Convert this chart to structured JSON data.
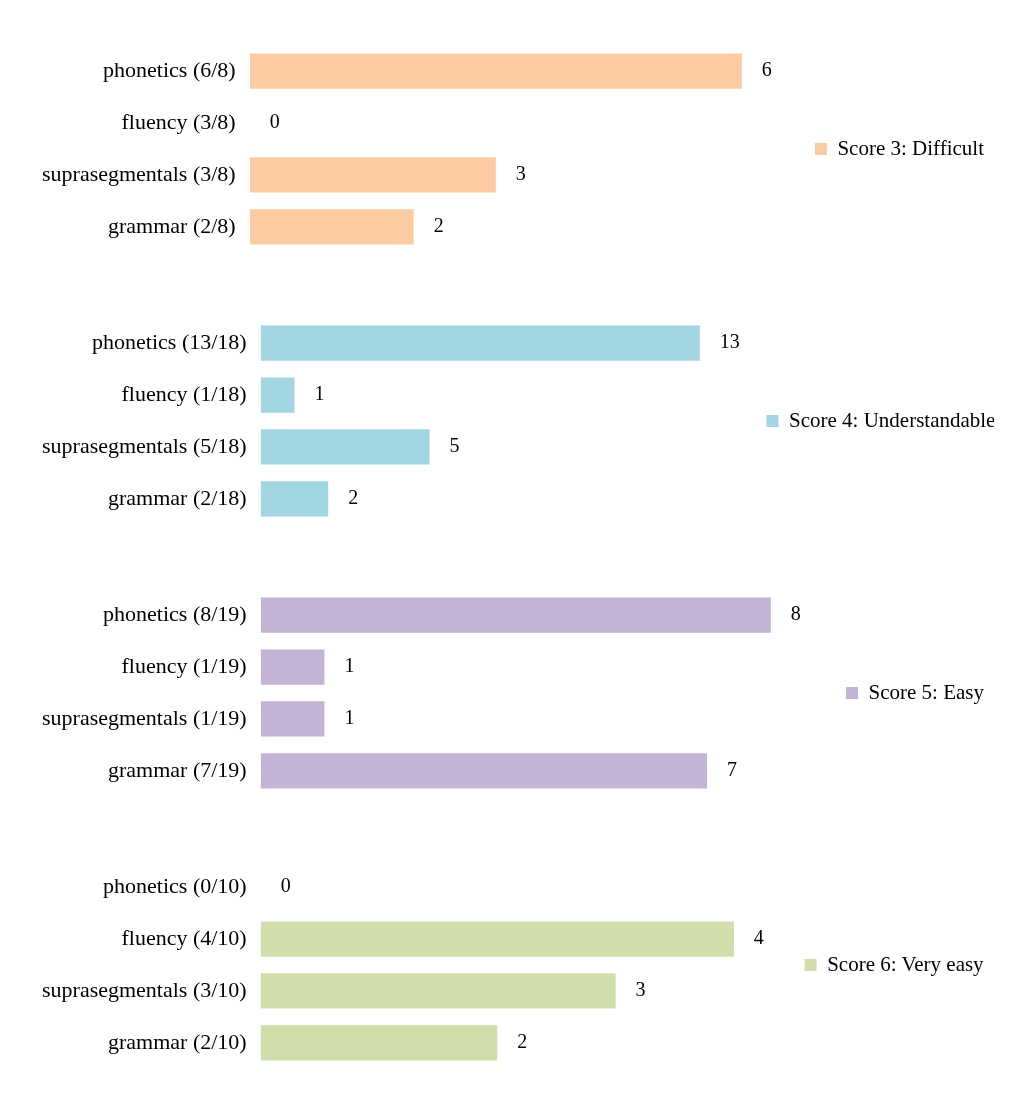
{
  "chart_data": [
    {
      "type": "bar",
      "orientation": "horizontal",
      "categories": [
        "phonetics (6/8)",
        "fluency (3/8)",
        "suprasegmentals (3/8)",
        "grammar (2/8)"
      ],
      "series": [
        {
          "name": "Score 3: Difficult",
          "color": "#fbcca1",
          "values": [
            6,
            0,
            3,
            2
          ]
        }
      ],
      "data_labels": true,
      "legend": "right",
      "tick_labels": "y",
      "grid": false
    },
    {
      "type": "bar",
      "orientation": "horizontal",
      "categories": [
        "phonetics (13/18)",
        "fluency (1/18)",
        "suprasegmentals (5/18)",
        "grammar (2/18)"
      ],
      "series": [
        {
          "name": "Score 4: Understandable",
          "color": "#a2d6e3",
          "values": [
            13,
            1,
            5,
            2
          ]
        }
      ],
      "data_labels": true,
      "legend": "right",
      "tick_labels": "y",
      "grid": false
    },
    {
      "type": "bar",
      "orientation": "horizontal",
      "categories": [
        "phonetics (8/19)",
        "fluency (1/19)",
        "suprasegmentals (1/19)",
        "grammar (7/19)"
      ],
      "series": [
        {
          "name": "Score 5: Easy",
          "color": "#c3b3d5",
          "values": [
            8,
            1,
            1,
            7
          ]
        }
      ],
      "data_labels": true,
      "legend": "right",
      "tick_labels": "y",
      "grid": false
    },
    {
      "type": "bar",
      "orientation": "horizontal",
      "categories": [
        "phonetics (0/10)",
        "fluency (4/10)",
        "suprasegmentals (3/10)",
        "grammar (2/10)"
      ],
      "series": [
        {
          "name": "Score 6: Very easy",
          "color": "#d0dfa9",
          "values": [
            0,
            4,
            3,
            2
          ]
        }
      ],
      "data_labels": true,
      "legend": "right",
      "tick_labels": "y",
      "grid": false
    }
  ]
}
